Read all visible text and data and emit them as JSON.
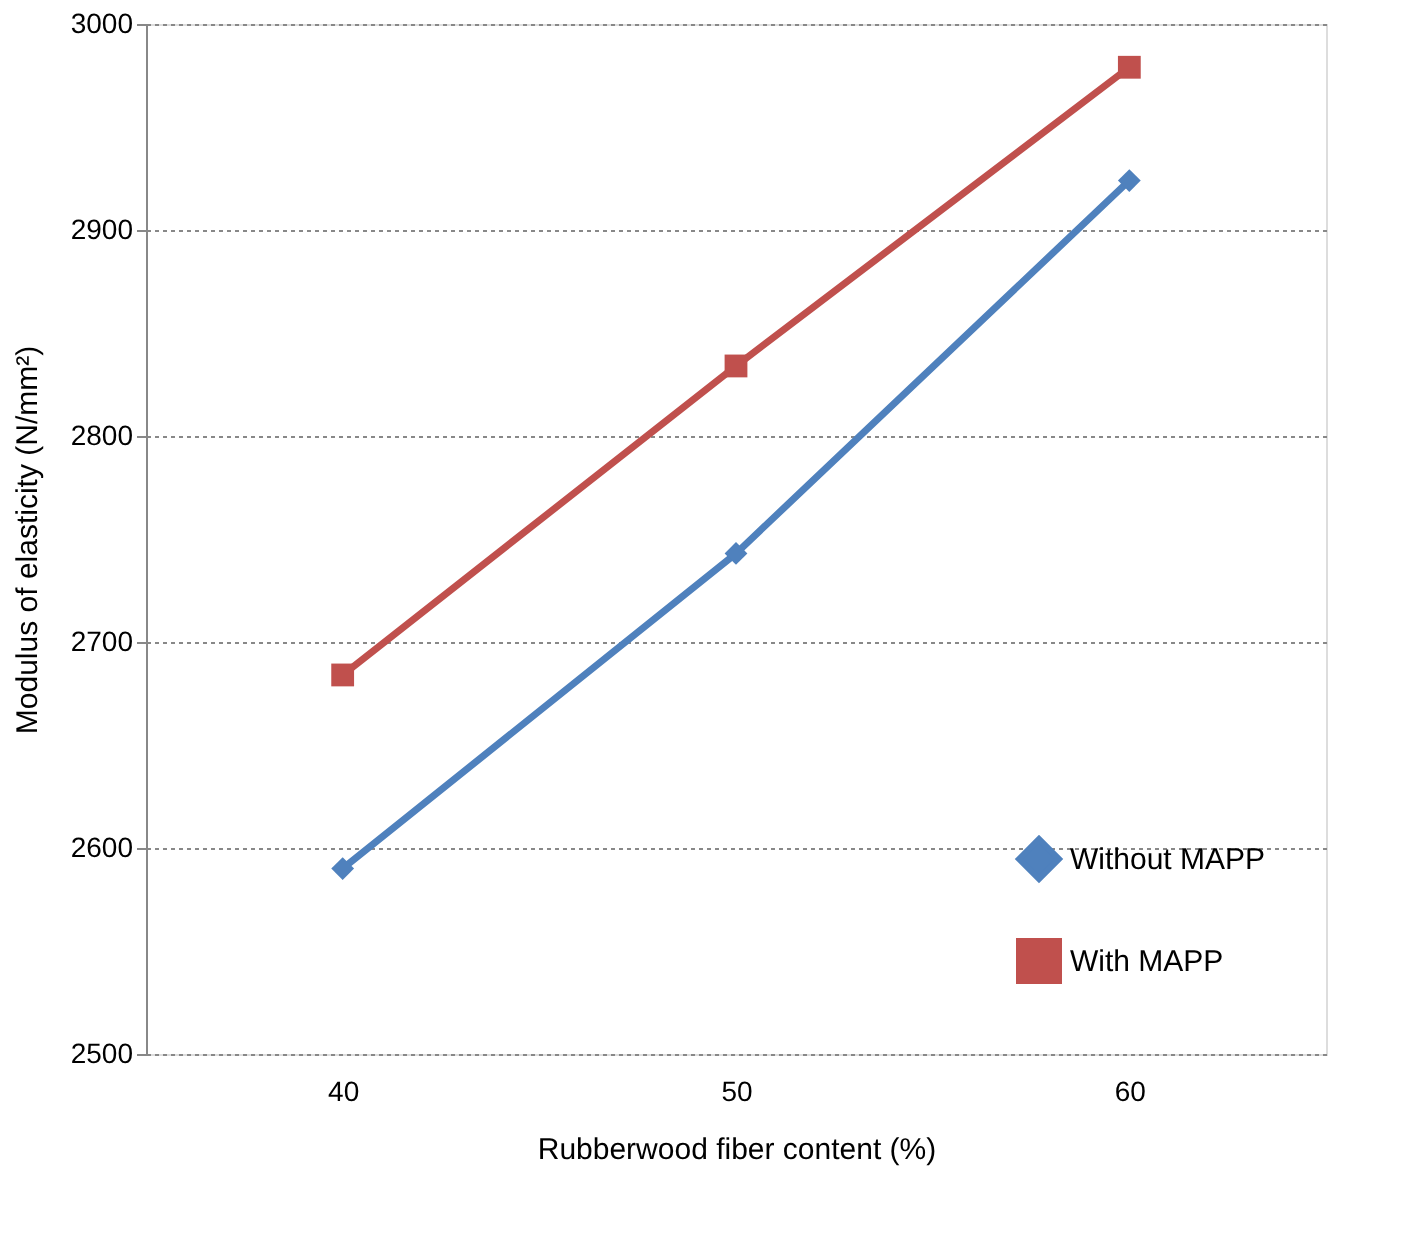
{
  "chart_data": {
    "type": "line",
    "xlabel": "Rubberwood fiber content  (%)",
    "ylabel": "Modulus of elasticity  (N/mm²)",
    "categories": [
      "40",
      "50",
      "60"
    ],
    "series": [
      {
        "name": "Without MAPP",
        "color": "#4f81bd",
        "marker": "diamond",
        "values": [
          2590,
          2743,
          2924
        ]
      },
      {
        "name": "With MAPP",
        "color": "#c0504d",
        "marker": "square",
        "values": [
          2684,
          2834,
          2979
        ]
      }
    ],
    "ylim": [
      2500,
      3000
    ],
    "yticks": [
      2500,
      2600,
      2700,
      2800,
      2900,
      3000
    ],
    "grid": "y",
    "legend": "bottom right",
    "line_style": "solid"
  }
}
